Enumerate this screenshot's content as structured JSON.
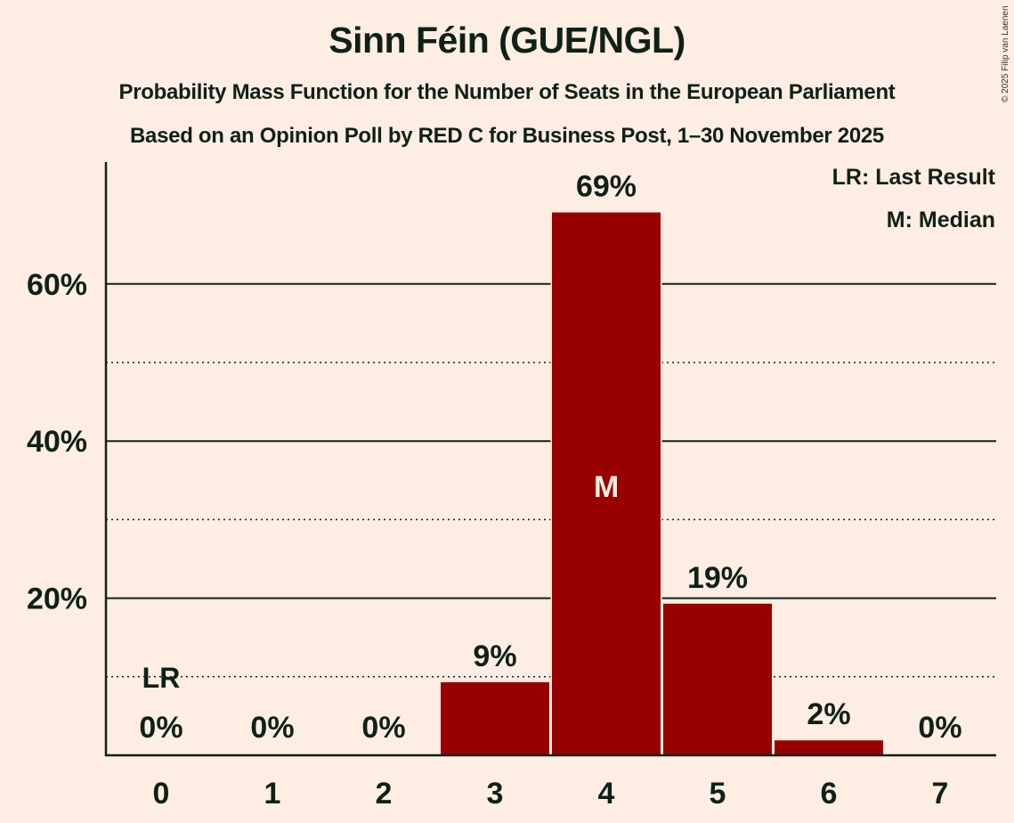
{
  "header": {
    "title": "Sinn Féin (GUE/NGL)",
    "subtitle1": "Probability Mass Function for the Number of Seats in the European Parliament",
    "subtitle2": "Based on an Opinion Poll by RED C for Business Post, 1–30 November 2025",
    "copyright": "© 2025 Filip van Laenen"
  },
  "legend": {
    "lr": "LR: Last Result",
    "m": "M: Median"
  },
  "colors": {
    "background": "#FEEDE2",
    "bar": "#990000",
    "text": "#0F2117",
    "median_marker_text": "#FEEDE2"
  },
  "chart_data": {
    "type": "bar",
    "title": "Sinn Féin (GUE/NGL)",
    "subtitle": "Probability Mass Function for the Number of Seats in the European Parliament",
    "xlabel": "",
    "ylabel": "",
    "categories": [
      "0",
      "1",
      "2",
      "3",
      "4",
      "5",
      "6",
      "7"
    ],
    "values": [
      0,
      0,
      0,
      9.3,
      69.1,
      19.3,
      1.9,
      0
    ],
    "value_labels": [
      "0%",
      "0%",
      "0%",
      "9%",
      "69%",
      "19%",
      "2%",
      "0%"
    ],
    "ylim": [
      0,
      75
    ],
    "yticks": [
      20,
      40,
      60
    ],
    "ytick_labels": [
      "20%",
      "40%",
      "60%"
    ],
    "minor_gridlines": [
      10,
      30,
      50
    ],
    "grid": true,
    "annotations": [
      {
        "category": "0",
        "label": "LR",
        "meaning": "Last Result"
      },
      {
        "category": "4",
        "label": "M",
        "meaning": "Median"
      }
    ],
    "legend_position": "top-right"
  }
}
